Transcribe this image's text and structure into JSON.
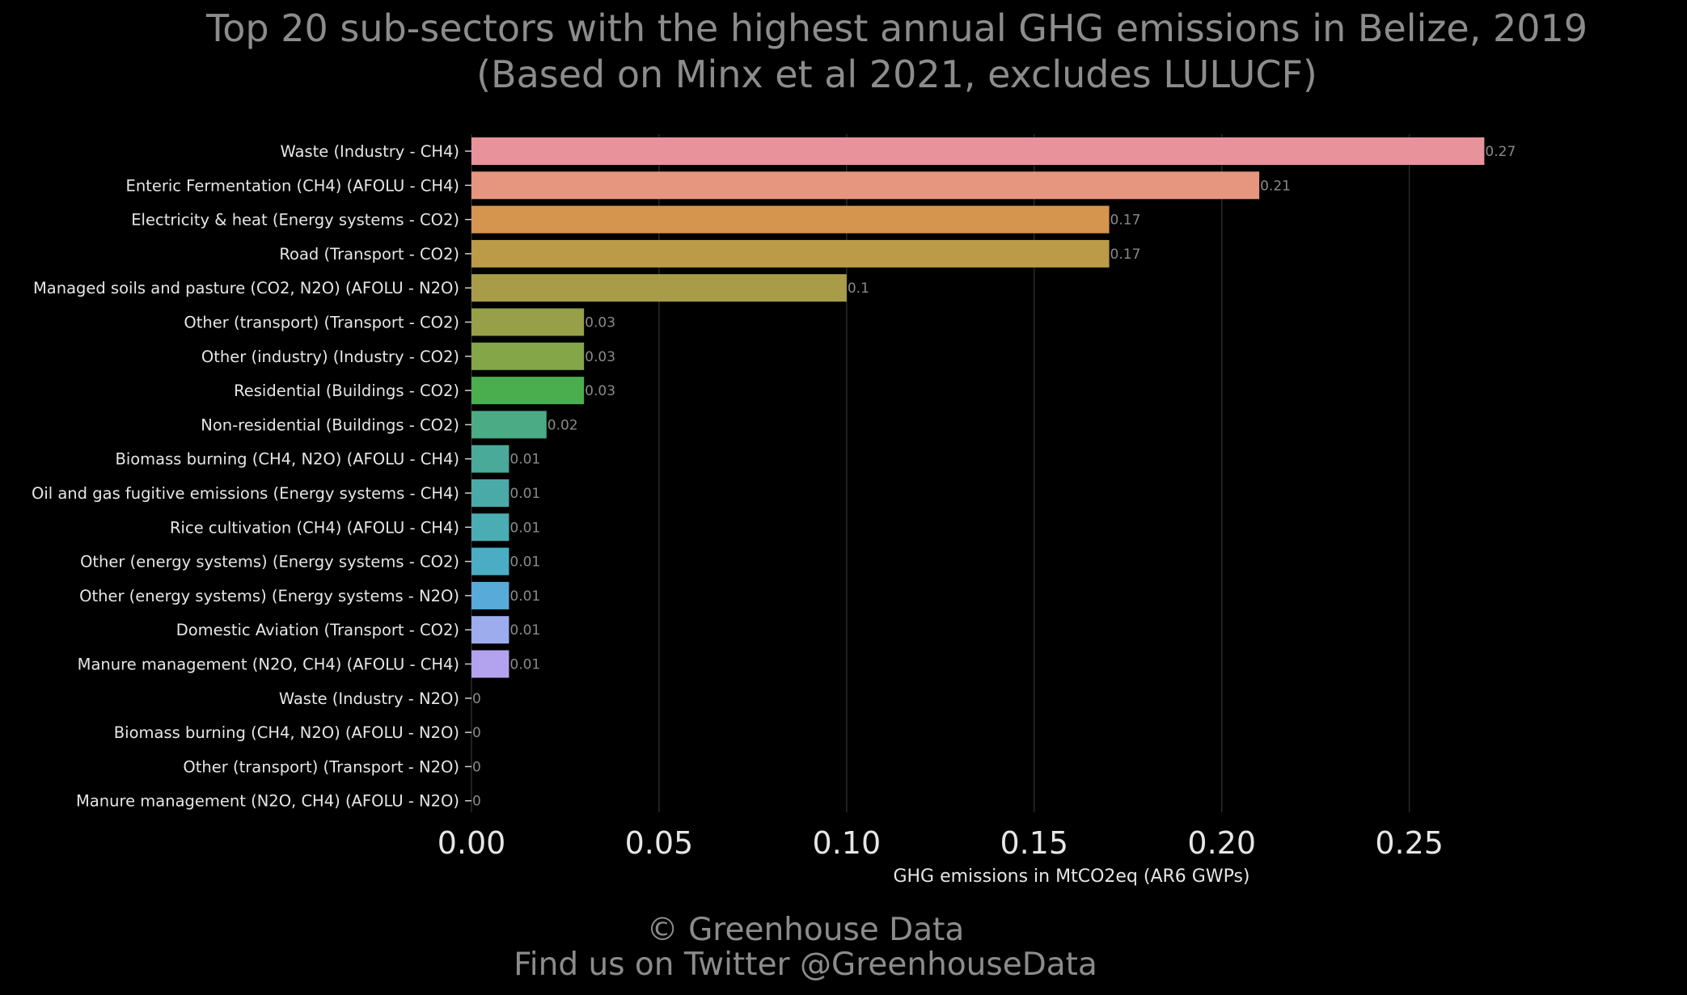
{
  "chart_data": {
    "type": "bar",
    "orientation": "horizontal",
    "title": "Top 20 sub-sectors with the highest annual GHG emissions in Belize, 2019",
    "subtitle": "(Based on Minx et al 2021, excludes LULUCF)",
    "xlabel": "GHG emissions in MtCO2eq (AR6 GWPs)",
    "ylabel": "",
    "xlim": [
      0,
      0.285
    ],
    "x_ticks": [
      "0.00",
      "0.05",
      "0.10",
      "0.15",
      "0.20",
      "0.25"
    ],
    "grid": "vertical",
    "categories": [
      "Waste (Industry - CH4)",
      "Enteric Fermentation (CH4) (AFOLU - CH4)",
      "Electricity & heat (Energy systems - CO2)",
      "Road (Transport - CO2)",
      "Managed soils and pasture (CO2, N2O) (AFOLU - N2O)",
      "Other (transport) (Transport - CO2)",
      "Other (industry) (Industry - CO2)",
      "Residential (Buildings - CO2)",
      "Non-residential (Buildings - CO2)",
      "Biomass burning (CH4, N2O) (AFOLU - CH4)",
      "Oil and gas fugitive emissions (Energy systems - CH4)",
      "Rice cultivation (CH4) (AFOLU - CH4)",
      "Other (energy systems) (Energy systems - CO2)",
      "Other (energy systems) (Energy systems - N2O)",
      "Domestic Aviation (Transport - CO2)",
      "Manure management (N2O, CH4) (AFOLU - CH4)",
      "Waste (Industry - N2O)",
      "Biomass burning (CH4, N2O) (AFOLU - N2O)",
      "Other (transport) (Transport - N2O)",
      "Manure management (N2O, CH4) (AFOLU - N2O)"
    ],
    "values": [
      0.27,
      0.21,
      0.17,
      0.17,
      0.1,
      0.03,
      0.03,
      0.03,
      0.02,
      0.01,
      0.01,
      0.01,
      0.01,
      0.01,
      0.01,
      0.01,
      0,
      0,
      0,
      0
    ],
    "data_labels": [
      "0.27",
      "0.21",
      "0.17",
      "0.17",
      "0.1",
      "0.03",
      "0.03",
      "0.03",
      "0.02",
      "0.01",
      "0.01",
      "0.01",
      "0.01",
      "0.01",
      "0.01",
      "0.01",
      "0",
      "0",
      "0",
      "0"
    ],
    "colors": [
      "#e8939b",
      "#e6967f",
      "#d6954f",
      "#bb9a48",
      "#a89c49",
      "#979f48",
      "#84a548",
      "#4aae4e",
      "#4aab84",
      "#49aa99",
      "#4aaaa8",
      "#4badb4",
      "#4aadc4",
      "#58abd8",
      "#9cacec",
      "#b3a3ef",
      "#d79be6",
      "#e69bd5",
      "#e89ac1",
      "#e896ae"
    ]
  },
  "footer": {
    "copyright": "© Greenhouse Data",
    "twitter": "Find us on Twitter @GreenhouseData"
  }
}
